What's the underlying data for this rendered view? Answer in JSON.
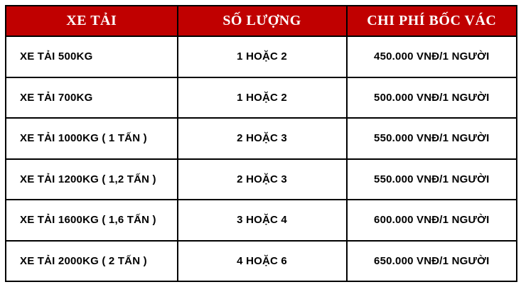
{
  "colors": {
    "header_bg": "#c00000",
    "header_text": "#ffffff",
    "body_text": "#000000",
    "border": "#000000",
    "page_bg": "#ffffff"
  },
  "table": {
    "headers": [
      "XE TẢI",
      "SỐ LƯỢNG",
      "CHI PHÍ BỐC VÁC"
    ],
    "rows": [
      {
        "truck": "XE TẢI 500KG",
        "quantity": "1 HOẶC 2",
        "cost": "450.000 VNĐ/1 NGƯỜI"
      },
      {
        "truck": "XE TẢI 700KG",
        "quantity": "1 HOẶC 2",
        "cost": "500.000 VNĐ/1 NGƯỜI"
      },
      {
        "truck": "XE TẢI 1000KG ( 1 TẤN )",
        "quantity": "2 HOẶC 3",
        "cost": "550.000 VNĐ/1 NGƯỜI"
      },
      {
        "truck": "XE TẢI 1200KG ( 1,2 TẤN )",
        "quantity": "2 HOẶC 3",
        "cost": "550.000 VNĐ/1 NGƯỜI"
      },
      {
        "truck": "XE TẢI 1600KG ( 1,6 TẤN )",
        "quantity": "3 HOẶC 4",
        "cost": "600.000 VNĐ/1 NGƯỜI"
      },
      {
        "truck": "XE TẢI 2000KG ( 2 TẤN )",
        "quantity": "4 HOẶC 6",
        "cost": "650.000 VNĐ/1 NGƯỜI"
      }
    ]
  },
  "chart_data": {
    "type": "table",
    "columns": [
      "XE TẢI",
      "SỐ LƯỢNG",
      "CHI PHÍ BỐC VÁC"
    ],
    "rows": [
      [
        "XE TẢI 500KG",
        "1 HOẶC 2",
        "450.000 VNĐ/1 NGƯỜI"
      ],
      [
        "XE TẢI 700KG",
        "1 HOẶC 2",
        "500.000 VNĐ/1 NGƯỜI"
      ],
      [
        "XE TẢI 1000KG ( 1 TẤN )",
        "2 HOẶC 3",
        "550.000 VNĐ/1 NGƯỜI"
      ],
      [
        "XE TẢI 1200KG ( 1,2 TẤN )",
        "2 HOẶC 3",
        "550.000 VNĐ/1 NGƯỜI"
      ],
      [
        "XE TẢI 1600KG ( 1,6 TẤN )",
        "3 HOẶC 4",
        "600.000 VNĐ/1 NGƯỜI"
      ],
      [
        "XE TẢI 2000KG ( 2 TẤN )",
        "4 HOẶC 6",
        "650.000 VNĐ/1 NGƯỜI"
      ]
    ],
    "title": "",
    "notes": "Truck loading-cost price table: truck size, number of workers, cost per person"
  }
}
